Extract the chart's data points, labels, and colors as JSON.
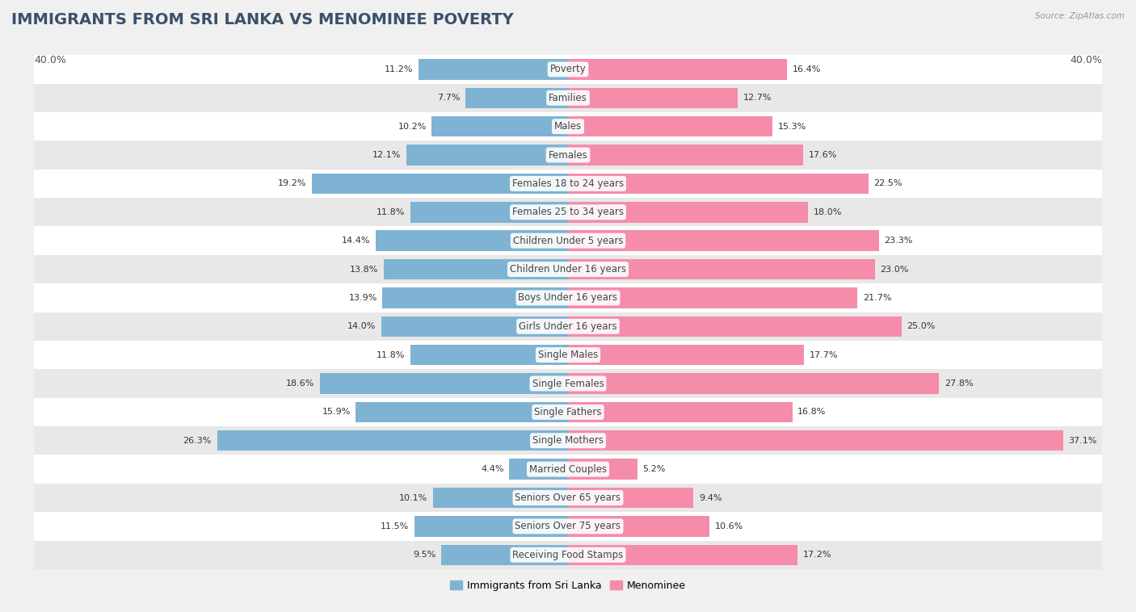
{
  "title": "IMMIGRANTS FROM SRI LANKA VS MENOMINEE POVERTY",
  "source": "Source: ZipAtlas.com",
  "categories": [
    "Poverty",
    "Families",
    "Males",
    "Females",
    "Females 18 to 24 years",
    "Females 25 to 34 years",
    "Children Under 5 years",
    "Children Under 16 years",
    "Boys Under 16 years",
    "Girls Under 16 years",
    "Single Males",
    "Single Females",
    "Single Fathers",
    "Single Mothers",
    "Married Couples",
    "Seniors Over 65 years",
    "Seniors Over 75 years",
    "Receiving Food Stamps"
  ],
  "left_values": [
    11.2,
    7.7,
    10.2,
    12.1,
    19.2,
    11.8,
    14.4,
    13.8,
    13.9,
    14.0,
    11.8,
    18.6,
    15.9,
    26.3,
    4.4,
    10.1,
    11.5,
    9.5
  ],
  "right_values": [
    16.4,
    12.7,
    15.3,
    17.6,
    22.5,
    18.0,
    23.3,
    23.0,
    21.7,
    25.0,
    17.7,
    27.8,
    16.8,
    37.1,
    5.2,
    9.4,
    10.6,
    17.2
  ],
  "left_color": "#7fb3d3",
  "right_color": "#f48caa",
  "left_label": "Immigrants from Sri Lanka",
  "right_label": "Menominee",
  "axis_limit": 40.0,
  "bg_color": "#f0f0f0",
  "row_bg_even": "#ffffff",
  "row_bg_odd": "#e8e8e8",
  "bar_height": 0.72,
  "title_fontsize": 14,
  "label_fontsize": 8.5,
  "value_fontsize": 8.0,
  "axis_label_fontsize": 9
}
